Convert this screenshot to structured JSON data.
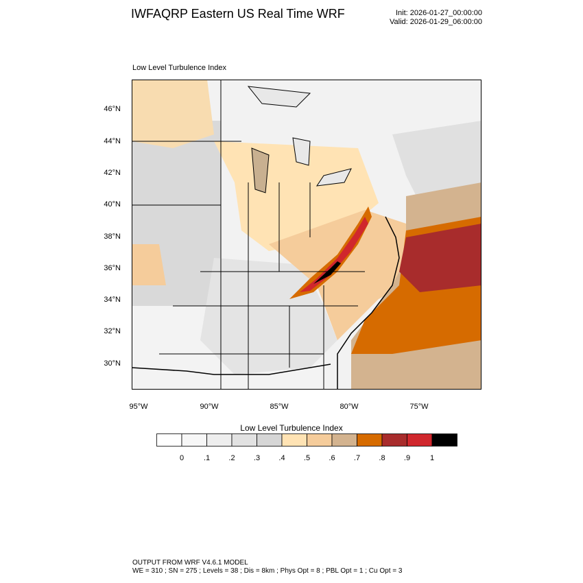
{
  "title": "IWFAQRP Eastern US Real Time WRF",
  "init": "Init: 2026-01-27_00:00:00",
  "valid": "Valid: 2026-01-29_06:00:00",
  "map_label": "Low Level Turbulence Index",
  "lat_labels": [
    "46°N",
    "44°N",
    "42°N",
    "40°N",
    "38°N",
    "36°N",
    "34°N",
    "32°N",
    "30°N"
  ],
  "lon_labels": [
    "95°W",
    "90°W",
    "85°W",
    "80°W",
    "75°W"
  ],
  "colorbar": {
    "title": "Low Level Turbulence Index",
    "colors": [
      "#ffffff",
      "#f7f7f7",
      "#eeeeee",
      "#e2e2e2",
      "#d6d6d6",
      "#ffe3b4",
      "#f5cc9b",
      "#d3b38f",
      "#d66b00",
      "#a82c2c",
      "#d0272d",
      "#000000"
    ],
    "labels": [
      "0",
      ".1",
      ".2",
      ".3",
      ".4",
      ".5",
      ".6",
      ".7",
      ".8",
      ".9",
      "1"
    ]
  },
  "footer": {
    "line1": "OUTPUT FROM WRF V4.6.1 MODEL",
    "line2": "WE = 310 ; SN = 275 ; Levels = 38 ; Dis = 8km ; Phys Opt = 8 ; PBL Opt = 1 ; Cu Opt = 3"
  }
}
